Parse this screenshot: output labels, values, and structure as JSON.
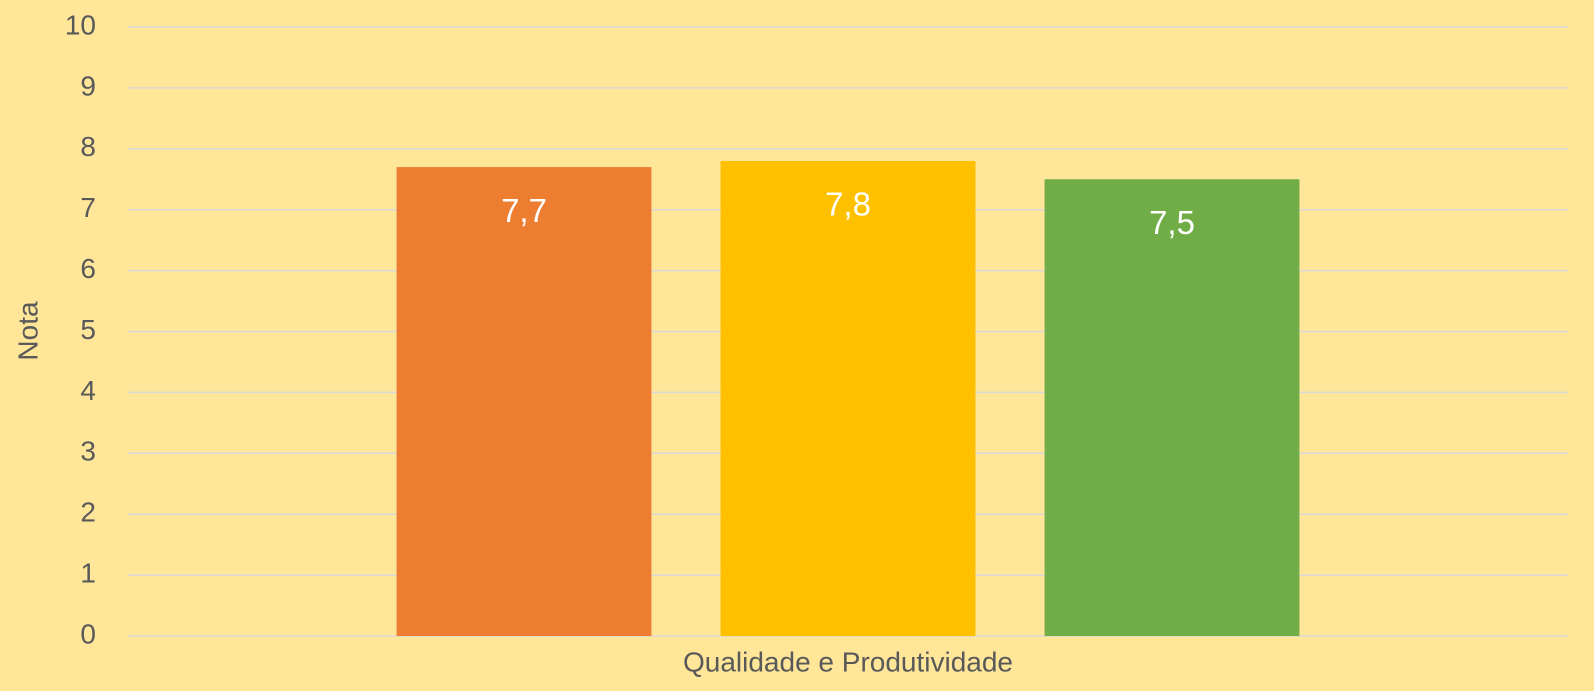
{
  "chart_data": {
    "type": "bar",
    "ylabel": "Nota",
    "categories": [
      "Qualidade e Produtividade"
    ],
    "series": [
      {
        "color": "#ed7d31",
        "values": [
          7.7
        ],
        "value_labels": [
          "7,7"
        ]
      },
      {
        "color": "#ffc000",
        "values": [
          7.8
        ],
        "value_labels": [
          "7,8"
        ]
      },
      {
        "color": "#70ad47",
        "values": [
          7.5
        ],
        "value_labels": [
          "7,5"
        ]
      }
    ],
    "ylim": [
      0,
      10
    ],
    "yticks": [
      0,
      1,
      2,
      3,
      4,
      5,
      6,
      7,
      8,
      9,
      10
    ],
    "grid": true
  }
}
